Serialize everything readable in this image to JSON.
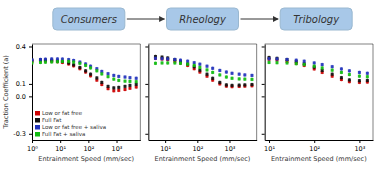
{
  "chart_data": [
    {
      "type": "scatter",
      "log": "x",
      "marker": "square",
      "legend": "lower left",
      "xlabel": "Entrainment Speed (mm/sec)",
      "ylabel": "Traction Coefficient (a)",
      "xlim": [
        1,
        7000
      ],
      "xticks": [
        {
          "value": 1,
          "label": "10⁰"
        },
        {
          "value": 10,
          "label": "10¹"
        },
        {
          "value": 100,
          "label": "10²"
        },
        {
          "value": 1000,
          "label": "10³"
        }
      ],
      "ylim": [
        -0.35,
        0.42
      ],
      "yticks": [
        -0.3,
        {
          "value": 0.0,
          "label": "0.0"
        },
        0.1,
        0.4
      ],
      "x": [
        1,
        2,
        3,
        5,
        8,
        12,
        20,
        30,
        50,
        80,
        120,
        200,
        300,
        500,
        800,
        1200,
        2000,
        3000,
        5000
      ],
      "series": [
        {
          "name": "Low or fat free",
          "color": "#cc0000",
          "error": 0.014,
          "values": [
            0.28,
            0.285,
            0.285,
            0.282,
            0.278,
            0.272,
            0.26,
            0.245,
            0.222,
            0.195,
            0.165,
            0.13,
            0.095,
            0.062,
            0.045,
            0.048,
            0.055,
            0.065,
            0.075
          ]
        },
        {
          "name": "Full Fat",
          "color": "#111111",
          "error": 0.014,
          "values": [
            0.29,
            0.293,
            0.292,
            0.29,
            0.285,
            0.28,
            0.268,
            0.253,
            0.232,
            0.205,
            0.178,
            0.148,
            0.112,
            0.08,
            0.068,
            0.072,
            0.08,
            0.088,
            0.096
          ]
        },
        {
          "name": "Low or fat free + saliva",
          "color": "#2233bb",
          "error": 0.014,
          "values": [
            0.292,
            0.296,
            0.298,
            0.3,
            0.3,
            0.299,
            0.295,
            0.288,
            0.275,
            0.26,
            0.242,
            0.222,
            0.2,
            0.182,
            0.168,
            0.16,
            0.155,
            0.15,
            0.145
          ]
        },
        {
          "name": "Full Fat + saliva",
          "color": "#11bb11",
          "error": 0.014,
          "values": [
            0.268,
            0.272,
            0.274,
            0.276,
            0.278,
            0.28,
            0.28,
            0.275,
            0.265,
            0.248,
            0.228,
            0.205,
            0.18,
            0.158,
            0.138,
            0.128,
            0.122,
            0.12,
            0.118
          ]
        }
      ]
    },
    {
      "type": "scatter",
      "log": "x",
      "marker": "square",
      "tick_labels": "x",
      "xlabel": "Entrainment Speed (mm/sec)",
      "annotations": [
        "Consumers",
        "Rheology",
        "Tribology"
      ],
      "xlim": [
        3,
        7000
      ],
      "xticks": [
        {
          "value": 10,
          "label": "10¹"
        },
        {
          "value": 100,
          "label": "10²"
        },
        {
          "value": 1000,
          "label": "10³"
        }
      ],
      "ylim": [
        -0.35,
        0.42
      ],
      "yticks": [
        -0.3,
        {
          "value": 0.0,
          "label": "0.0"
        },
        0.1,
        0.4
      ],
      "x": [
        5,
        8,
        12,
        20,
        30,
        50,
        80,
        120,
        200,
        300,
        500,
        800,
        1200,
        2000,
        3000,
        5000
      ],
      "series": [
        {
          "color": "#cc0000",
          "error": 0.014,
          "values": [
            0.305,
            0.3,
            0.295,
            0.282,
            0.268,
            0.248,
            0.222,
            0.195,
            0.162,
            0.13,
            0.1,
            0.082,
            0.078,
            0.08,
            0.082,
            0.085
          ]
        },
        {
          "color": "#111111",
          "error": 0.014,
          "values": [
            0.32,
            0.315,
            0.308,
            0.295,
            0.28,
            0.26,
            0.238,
            0.21,
            0.178,
            0.145,
            0.112,
            0.092,
            0.088,
            0.09,
            0.092,
            0.095
          ]
        },
        {
          "color": "#2233bb",
          "error": 0.014,
          "values": [
            0.305,
            0.302,
            0.3,
            0.296,
            0.29,
            0.282,
            0.27,
            0.258,
            0.242,
            0.225,
            0.208,
            0.195,
            0.185,
            0.178,
            0.172,
            0.168
          ]
        },
        {
          "color": "#11bb11",
          "error": 0.014,
          "values": [
            0.265,
            0.268,
            0.268,
            0.268,
            0.265,
            0.258,
            0.248,
            0.232,
            0.212,
            0.192,
            0.172,
            0.155,
            0.145,
            0.14,
            0.138,
            0.136
          ]
        }
      ]
    },
    {
      "type": "scatter",
      "log": "x",
      "marker": "square",
      "tick_labels": "x",
      "xlabel": "Entrainment Speed (mm/sec)",
      "xlim": [
        8,
        2000
      ],
      "xticks": [
        {
          "value": 10,
          "label": "10¹"
        },
        {
          "value": 100,
          "label": "10²"
        },
        {
          "value": 1000,
          "label": "10³"
        }
      ],
      "ylim": [
        -0.35,
        0.42
      ],
      "yticks": [
        -0.3,
        {
          "value": 0.0,
          "label": "0.0"
        },
        0.1,
        0.4
      ],
      "x": [
        10,
        15,
        25,
        40,
        60,
        100,
        150,
        250,
        400,
        600,
        1000,
        1500
      ],
      "series": [
        {
          "color": "#cc0000",
          "error": 0.014,
          "values": [
            0.298,
            0.292,
            0.28,
            0.265,
            0.248,
            0.22,
            0.192,
            0.162,
            0.135,
            0.118,
            0.112,
            0.115
          ]
        },
        {
          "color": "#111111",
          "error": 0.014,
          "values": [
            0.312,
            0.305,
            0.295,
            0.28,
            0.262,
            0.235,
            0.208,
            0.178,
            0.15,
            0.132,
            0.126,
            0.128
          ]
        },
        {
          "color": "#2233bb",
          "error": 0.014,
          "values": [
            0.302,
            0.3,
            0.296,
            0.29,
            0.282,
            0.268,
            0.255,
            0.238,
            0.22,
            0.205,
            0.192,
            0.185
          ]
        },
        {
          "color": "#11bb11",
          "error": 0.014,
          "values": [
            0.272,
            0.27,
            0.268,
            0.262,
            0.255,
            0.242,
            0.228,
            0.21,
            0.192,
            0.175,
            0.162,
            0.158
          ]
        }
      ]
    }
  ]
}
